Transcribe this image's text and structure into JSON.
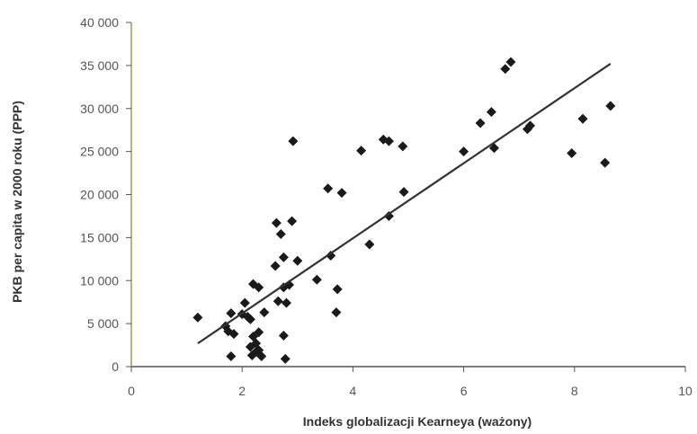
{
  "chart_data": {
    "type": "scatter",
    "title": "",
    "xlabel": "Indeks globalizacji Kearneya (ważony)",
    "ylabel": "PKB per capita w 2000 roku (PPP)",
    "xlim": [
      0,
      10
    ],
    "ylim": [
      0,
      40000
    ],
    "x_ticks": [
      0,
      2,
      4,
      6,
      8,
      10
    ],
    "x_tick_labels": [
      "0",
      "2",
      "4",
      "6",
      "8",
      "10"
    ],
    "y_ticks": [
      0,
      5000,
      10000,
      15000,
      20000,
      25000,
      30000,
      35000,
      40000
    ],
    "y_tick_labels": [
      "0",
      "5 000",
      "10 000",
      "15 000",
      "20 000",
      "25 000",
      "30 000",
      "35 000",
      "40 000"
    ],
    "grid": false,
    "legend": "none",
    "marker": "diamond",
    "marker_color": "#1a1a1a",
    "trendline": {
      "x1": 1.2,
      "y1": 2700,
      "x2": 8.65,
      "y2": 35200,
      "color": "#333333"
    },
    "points": [
      {
        "x": 1.2,
        "y": 5700
      },
      {
        "x": 1.7,
        "y": 4700
      },
      {
        "x": 1.75,
        "y": 4100
      },
      {
        "x": 1.8,
        "y": 6200
      },
      {
        "x": 1.85,
        "y": 3800
      },
      {
        "x": 1.8,
        "y": 1200
      },
      {
        "x": 2.0,
        "y": 6100
      },
      {
        "x": 2.05,
        "y": 7400
      },
      {
        "x": 2.1,
        "y": 5800
      },
      {
        "x": 2.15,
        "y": 5500
      },
      {
        "x": 2.15,
        "y": 2300
      },
      {
        "x": 2.18,
        "y": 1300
      },
      {
        "x": 2.2,
        "y": 3500
      },
      {
        "x": 2.2,
        "y": 9600
      },
      {
        "x": 2.25,
        "y": 2700
      },
      {
        "x": 2.25,
        "y": 1700
      },
      {
        "x": 2.3,
        "y": 9200
      },
      {
        "x": 2.3,
        "y": 4000
      },
      {
        "x": 2.3,
        "y": 1900
      },
      {
        "x": 2.35,
        "y": 1200
      },
      {
        "x": 2.4,
        "y": 6300
      },
      {
        "x": 2.6,
        "y": 11700
      },
      {
        "x": 2.62,
        "y": 16700
      },
      {
        "x": 2.65,
        "y": 7600
      },
      {
        "x": 2.7,
        "y": 15400
      },
      {
        "x": 2.75,
        "y": 12700
      },
      {
        "x": 2.75,
        "y": 9200
      },
      {
        "x": 2.75,
        "y": 3600
      },
      {
        "x": 2.78,
        "y": 900
      },
      {
        "x": 2.8,
        "y": 7400
      },
      {
        "x": 2.85,
        "y": 9500
      },
      {
        "x": 2.9,
        "y": 16900
      },
      {
        "x": 2.92,
        "y": 26200
      },
      {
        "x": 3.0,
        "y": 12300
      },
      {
        "x": 3.35,
        "y": 10100
      },
      {
        "x": 3.55,
        "y": 20700
      },
      {
        "x": 3.6,
        "y": 12900
      },
      {
        "x": 3.7,
        "y": 6300
      },
      {
        "x": 3.72,
        "y": 9000
      },
      {
        "x": 3.8,
        "y": 20200
      },
      {
        "x": 4.15,
        "y": 25100
      },
      {
        "x": 4.3,
        "y": 14200
      },
      {
        "x": 4.55,
        "y": 26400
      },
      {
        "x": 4.65,
        "y": 26200
      },
      {
        "x": 4.65,
        "y": 17500
      },
      {
        "x": 4.9,
        "y": 25600
      },
      {
        "x": 4.92,
        "y": 20300
      },
      {
        "x": 6.0,
        "y": 25000
      },
      {
        "x": 6.3,
        "y": 28300
      },
      {
        "x": 6.5,
        "y": 29600
      },
      {
        "x": 6.55,
        "y": 25400
      },
      {
        "x": 6.75,
        "y": 34600
      },
      {
        "x": 6.85,
        "y": 35400
      },
      {
        "x": 7.15,
        "y": 27600
      },
      {
        "x": 7.2,
        "y": 28000
      },
      {
        "x": 7.95,
        "y": 24800
      },
      {
        "x": 8.15,
        "y": 28800
      },
      {
        "x": 8.55,
        "y": 23700
      },
      {
        "x": 8.65,
        "y": 30300
      }
    ]
  }
}
